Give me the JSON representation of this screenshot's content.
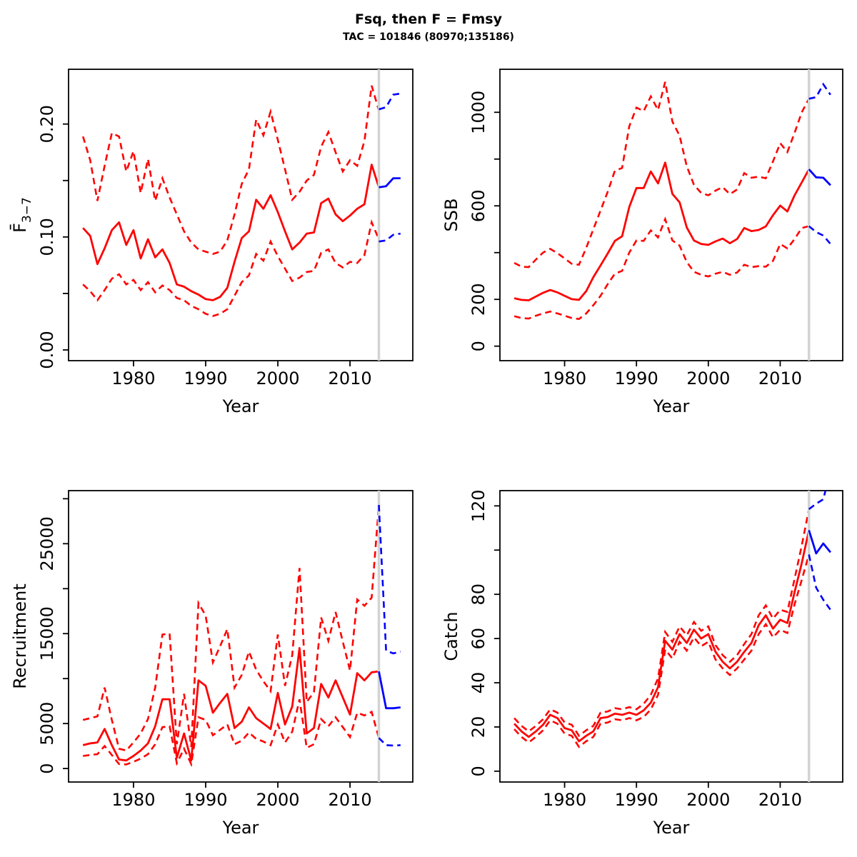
{
  "header": {
    "title": "Fsq, then F = Fmsy",
    "subtitle": "TAC = 101846 (80970;135186)"
  },
  "colors": {
    "history": "#FF0000",
    "forecast": "#0000FF",
    "divider": "#D3D3D3",
    "axis": "#000000"
  },
  "divider_year": 2014,
  "x_axis": {
    "label": "Year",
    "ticks": [
      1980,
      1990,
      2000,
      2010
    ],
    "lim": [
      1971.0,
      2018.7
    ]
  },
  "years": {
    "history": [
      1973,
      1974,
      1975,
      1976,
      1977,
      1978,
      1979,
      1980,
      1981,
      1982,
      1983,
      1984,
      1985,
      1986,
      1987,
      1988,
      1989,
      1990,
      1991,
      1992,
      1993,
      1994,
      1995,
      1996,
      1997,
      1998,
      1999,
      2000,
      2001,
      2002,
      2003,
      2004,
      2005,
      2006,
      2007,
      2008,
      2009,
      2010,
      2011,
      2012,
      2013,
      2014
    ],
    "forecast": [
      2014,
      2015,
      2016,
      2017
    ]
  },
  "chart_data": [
    {
      "type": "line",
      "id": "fbar",
      "ylabel": {
        "main": "F̄",
        "sub": "3−7"
      },
      "ylim": [
        -0.0095,
        0.2485
      ],
      "yticks": [
        {
          "v": 0.0,
          "label": "0.00"
        },
        {
          "v": 0.05,
          "label": ""
        },
        {
          "v": 0.1,
          "label": "0.10"
        },
        {
          "v": 0.15,
          "label": ""
        },
        {
          "v": 0.2,
          "label": "0.20"
        }
      ],
      "history": {
        "median": [
          0.108,
          0.101,
          0.076,
          0.09,
          0.106,
          0.113,
          0.093,
          0.106,
          0.081,
          0.098,
          0.082,
          0.089,
          0.077,
          0.058,
          0.056,
          0.052,
          0.049,
          0.045,
          0.044,
          0.047,
          0.055,
          0.078,
          0.099,
          0.105,
          0.133,
          0.125,
          0.137,
          0.122,
          0.105,
          0.089,
          0.095,
          0.103,
          0.104,
          0.13,
          0.134,
          0.12,
          0.114,
          0.119,
          0.125,
          0.129,
          0.164,
          0.144
        ],
        "upper": [
          0.189,
          0.168,
          0.132,
          0.163,
          0.192,
          0.189,
          0.158,
          0.176,
          0.139,
          0.169,
          0.132,
          0.152,
          0.135,
          0.12,
          0.105,
          0.095,
          0.089,
          0.087,
          0.085,
          0.087,
          0.097,
          0.12,
          0.147,
          0.16,
          0.204,
          0.19,
          0.211,
          0.186,
          0.16,
          0.133,
          0.14,
          0.15,
          0.155,
          0.18,
          0.193,
          0.175,
          0.158,
          0.168,
          0.163,
          0.185,
          0.234,
          0.212
        ],
        "lower": [
          0.058,
          0.052,
          0.044,
          0.053,
          0.063,
          0.067,
          0.058,
          0.062,
          0.053,
          0.06,
          0.051,
          0.057,
          0.053,
          0.046,
          0.044,
          0.039,
          0.036,
          0.032,
          0.03,
          0.032,
          0.036,
          0.048,
          0.06,
          0.066,
          0.085,
          0.079,
          0.096,
          0.083,
          0.072,
          0.061,
          0.064,
          0.069,
          0.07,
          0.086,
          0.089,
          0.077,
          0.073,
          0.078,
          0.077,
          0.084,
          0.113,
          0.098
        ]
      },
      "forecast": {
        "median": [
          0.144,
          0.145,
          0.152,
          0.152
        ],
        "upper": [
          0.213,
          0.215,
          0.226,
          0.227
        ],
        "lower": [
          0.096,
          0.097,
          0.102,
          0.103
        ]
      }
    },
    {
      "type": "line",
      "id": "ssb",
      "ylabel": {
        "main": "SSB",
        "sub": ""
      },
      "ylim": [
        -62,
        1184
      ],
      "yticks": [
        {
          "v": 0,
          "label": "0"
        },
        {
          "v": 200,
          "label": "200"
        },
        {
          "v": 400,
          "label": ""
        },
        {
          "v": 600,
          "label": "600"
        },
        {
          "v": 800,
          "label": ""
        },
        {
          "v": 1000,
          "label": "1000"
        }
      ],
      "history": {
        "median": [
          205,
          198,
          196,
          212,
          228,
          240,
          230,
          215,
          201,
          198,
          235,
          295,
          345,
          396,
          450,
          470,
          595,
          676,
          676,
          747,
          696,
          785,
          651,
          615,
          508,
          452,
          437,
          433,
          448,
          460,
          440,
          458,
          505,
          492,
          497,
          512,
          560,
          601,
          576,
          645,
          700,
          756
        ],
        "upper": [
          356,
          340,
          338,
          370,
          400,
          416,
          398,
          375,
          352,
          348,
          420,
          500,
          580,
          660,
          750,
          762,
          940,
          1020,
          1005,
          1068,
          1010,
          1130,
          960,
          900,
          770,
          690,
          655,
          645,
          665,
          680,
          650,
          670,
          740,
          720,
          725,
          718,
          790,
          868,
          830,
          912,
          1000,
          1058
        ],
        "lower": [
          128,
          120,
          118,
          130,
          140,
          148,
          140,
          130,
          120,
          116,
          140,
          175,
          215,
          265,
          310,
          322,
          400,
          452,
          450,
          495,
          465,
          543,
          452,
          430,
          360,
          318,
          305,
          298,
          310,
          318,
          305,
          315,
          348,
          338,
          342,
          340,
          365,
          437,
          418,
          458,
          505,
          513
        ]
      },
      "forecast": {
        "median": [
          756,
          722,
          720,
          688
        ],
        "upper": [
          1058,
          1065,
          1120,
          1075
        ],
        "lower": [
          513,
          488,
          473,
          437
        ]
      }
    },
    {
      "type": "line",
      "id": "recruitment",
      "ylabel": {
        "main": "Recruitment",
        "sub": ""
      },
      "ylim": [
        -1500,
        30900
      ],
      "yticks": [
        {
          "v": 0,
          "label": "0"
        },
        {
          "v": 5000,
          "label": "5000"
        },
        {
          "v": 10000,
          "label": ""
        },
        {
          "v": 15000,
          "label": "15000"
        },
        {
          "v": 20000,
          "label": ""
        },
        {
          "v": 25000,
          "label": "25000"
        },
        {
          "v": 30000,
          "label": ""
        }
      ],
      "history": {
        "median": [
          2600,
          2800,
          2900,
          4400,
          2600,
          1000,
          900,
          1400,
          2000,
          2800,
          4700,
          7700,
          7700,
          1200,
          3900,
          900,
          9800,
          9200,
          6200,
          7300,
          8300,
          4500,
          5200,
          6800,
          5600,
          5000,
          4400,
          8400,
          4900,
          6900,
          13400,
          3900,
          4500,
          9400,
          7900,
          9800,
          7900,
          6000,
          10600,
          9800,
          10700,
          10800
        ],
        "upper": [
          5400,
          5600,
          5800,
          9000,
          5400,
          2200,
          2000,
          2900,
          3900,
          5500,
          9000,
          14900,
          15000,
          2700,
          8300,
          2400,
          18400,
          17000,
          11800,
          13600,
          15500,
          9000,
          10400,
          13000,
          11000,
          9700,
          8600,
          14900,
          9200,
          12600,
          22300,
          7400,
          8500,
          16800,
          14200,
          17400,
          14100,
          10900,
          18800,
          18100,
          19000,
          29300
        ],
        "lower": [
          1400,
          1500,
          1600,
          2500,
          1500,
          500,
          450,
          750,
          1100,
          1600,
          2700,
          4600,
          4700,
          600,
          2200,
          500,
          5700,
          5400,
          3700,
          4300,
          4900,
          2700,
          3100,
          4000,
          3300,
          3000,
          2600,
          4900,
          2900,
          4100,
          7700,
          2300,
          2700,
          5500,
          4700,
          5700,
          4600,
          3500,
          6200,
          5900,
          6300,
          3400
        ]
      },
      "forecast": {
        "median": [
          10800,
          6700,
          6700,
          6800
        ],
        "upper": [
          29300,
          13100,
          12800,
          13000
        ],
        "lower": [
          3400,
          2600,
          2550,
          2600
        ]
      }
    },
    {
      "type": "line",
      "id": "catch",
      "ylabel": {
        "main": "Catch",
        "sub": ""
      },
      "ylim": [
        -4.9,
        126.9
      ],
      "yticks": [
        {
          "v": 0,
          "label": "0"
        },
        {
          "v": 20,
          "label": "20"
        },
        {
          "v": 40,
          "label": "40"
        },
        {
          "v": 60,
          "label": "60"
        },
        {
          "v": 80,
          "label": "80"
        },
        {
          "v": 100,
          "label": ""
        },
        {
          "v": 120,
          "label": "120"
        }
      ],
      "history": {
        "median": [
          21.5,
          18,
          15.5,
          18,
          21,
          25.5,
          24,
          19.5,
          18.5,
          13.5,
          16,
          18,
          24,
          24.5,
          26,
          25.5,
          26.5,
          25.5,
          27.5,
          31,
          38,
          59,
          55,
          62,
          58,
          64,
          60,
          62,
          54,
          49.5,
          46.5,
          49.5,
          54,
          58,
          66,
          70.5,
          64.5,
          68.5,
          67,
          81,
          94,
          109
        ],
        "upper": [
          24,
          20.5,
          18,
          20.5,
          23.5,
          28,
          26.5,
          22,
          21,
          16,
          18.5,
          20.5,
          26.5,
          27,
          28.5,
          28,
          29,
          28,
          30.5,
          34.5,
          42,
          63,
          58.5,
          65.5,
          61.5,
          67.5,
          63.5,
          65.5,
          57,
          52.5,
          49.5,
          52.5,
          57.5,
          62,
          70.5,
          75,
          69,
          73,
          72,
          87,
          102,
          118.5
        ],
        "lower": [
          19,
          15.5,
          13,
          15.5,
          18.5,
          23,
          21.5,
          17,
          16,
          11,
          13.5,
          15.5,
          21.5,
          22,
          23.5,
          23,
          24,
          23,
          24.5,
          28,
          34.5,
          55,
          51,
          58.5,
          54.5,
          60.5,
          56.5,
          58.5,
          50.5,
          46.5,
          43.5,
          46.5,
          50.5,
          54.5,
          62,
          66.5,
          60.5,
          64,
          62.5,
          75.5,
          86.5,
          98
        ]
      },
      "forecast": {
        "median": [
          109,
          98.5,
          103,
          99
        ],
        "upper": [
          118.5,
          121,
          123,
          136
        ],
        "lower": [
          98,
          83,
          77.5,
          73
        ]
      }
    }
  ]
}
